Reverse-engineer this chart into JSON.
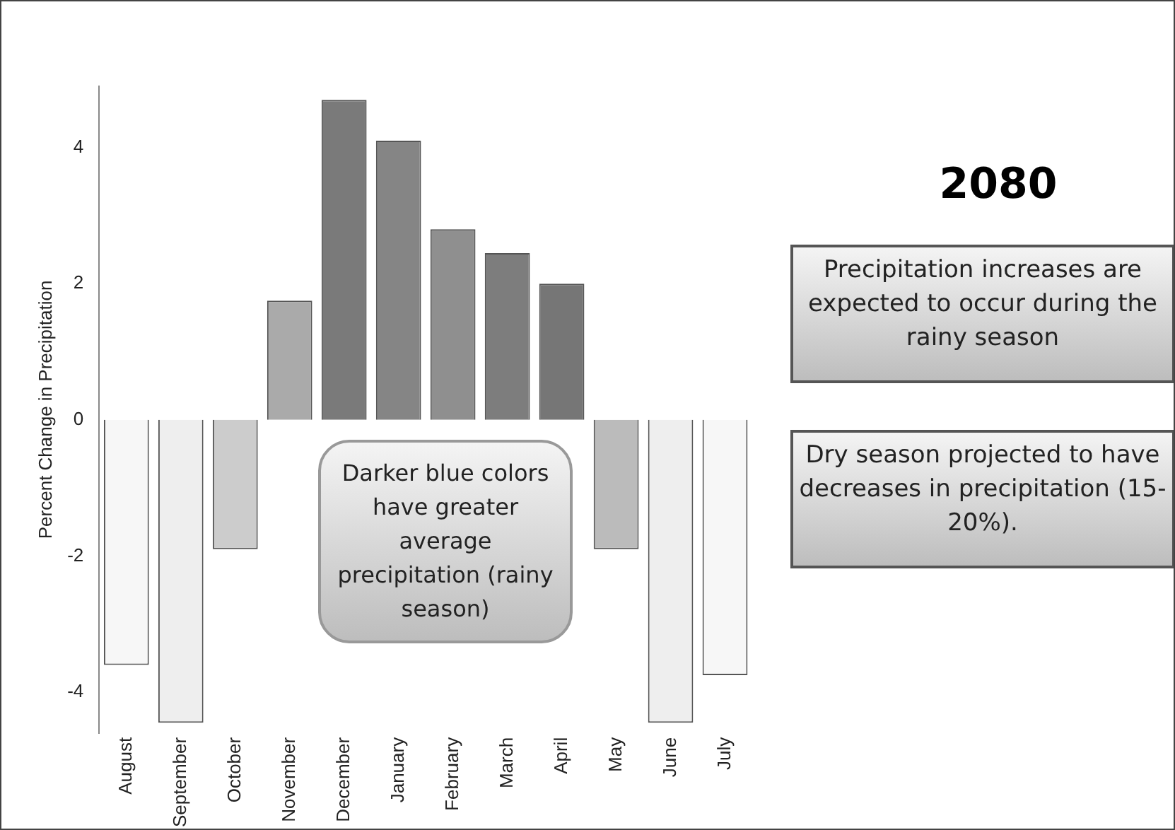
{
  "chart_data": {
    "type": "bar",
    "title": "2080",
    "ylabel": "Percent Change in Precipitation",
    "categories": [
      "August",
      "September",
      "October",
      "November",
      "December",
      "January",
      "February",
      "March",
      "April",
      "May",
      "June",
      "July"
    ],
    "values": [
      -3.6,
      -4.45,
      -1.9,
      1.75,
      4.7,
      4.1,
      2.8,
      2.45,
      2.0,
      -1.9,
      -4.45,
      -3.75
    ],
    "colors": [
      "#f7f7f7",
      "#eeeeee",
      "#cccccc",
      "#aaaaaa",
      "#7a7a7a",
      "#858585",
      "#8f8f8f",
      "#7d7d7d",
      "#767676",
      "#bbbbbb",
      "#eeeeee",
      "#f7f7f7"
    ],
    "ylim": [
      -4.6,
      4.9
    ],
    "yticks": [
      -4,
      -2,
      0,
      2,
      4
    ],
    "grid": false,
    "legend": false,
    "annotations": [
      "Darker blue colors have greater average precipitation (rainy season)",
      "Precipitation increases are expected to occur during the rainy season",
      "Dry season projected to have decreases in precipitation (15-20%)."
    ]
  }
}
